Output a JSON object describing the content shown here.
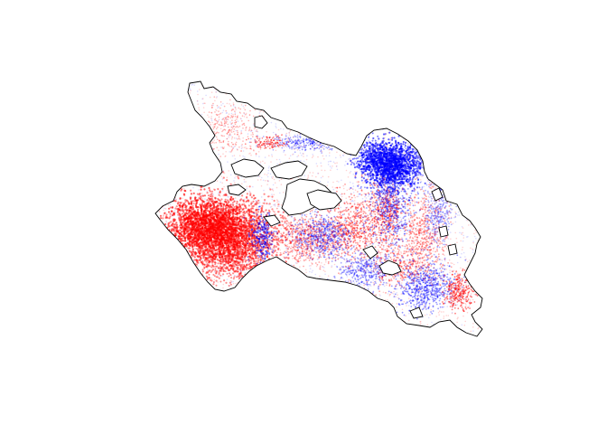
{
  "map": {
    "outline_color": "#000000",
    "background": "#ffffff",
    "series": [
      {
        "color": "#ff0000"
      },
      {
        "color": "#0000ff"
      }
    ]
  }
}
